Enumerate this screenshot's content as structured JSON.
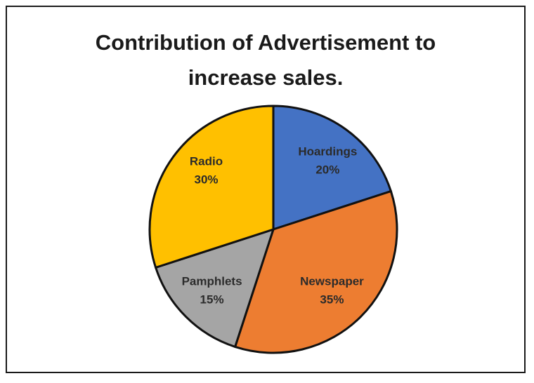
{
  "chart_data": {
    "type": "pie",
    "title_lines": [
      "Contribution of Advertisement to",
      "increase sales."
    ],
    "slices": [
      {
        "label": "Hoardings",
        "value": 20,
        "value_text": "20%",
        "color": "#4472C4"
      },
      {
        "label": "Newspaper",
        "value": 35,
        "value_text": "35%",
        "color": "#ED7D31"
      },
      {
        "label": "Pamphlets",
        "value": 15,
        "value_text": "15%",
        "color": "#A5A5A5"
      },
      {
        "label": "Radio",
        "value": 30,
        "value_text": "30%",
        "color": "#FFC000"
      }
    ],
    "start": "top",
    "direction": "clockwise",
    "legend": "none"
  }
}
